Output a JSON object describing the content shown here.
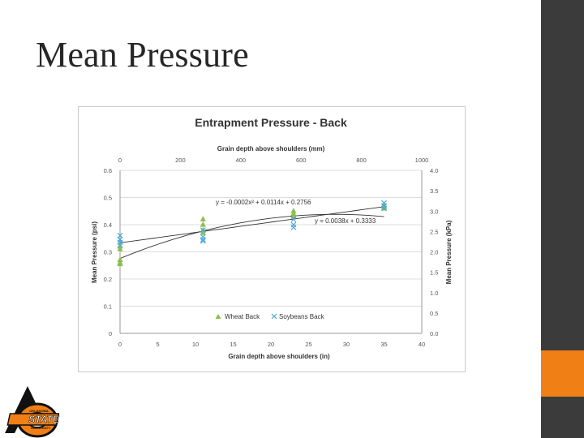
{
  "slide": {
    "title": "Mean Pressure"
  },
  "logo": {
    "text_top": "OKLAHOMA",
    "text_main": "STATE",
    "text_bottom": "UNIVERSITY"
  },
  "chart_data": {
    "type": "scatter",
    "title": "Entrapment Pressure - Back",
    "xlabel": "Grain depth above shoulders (in)",
    "ylabel": "Mean Pressure (psi)",
    "x2label": "Grain depth above shoulders (mm)",
    "y2label": "Mean Pressure (kPa)",
    "xlim": [
      0,
      40
    ],
    "ylim": [
      0,
      0.6
    ],
    "x2lim": [
      0,
      1000
    ],
    "y2lim": [
      0,
      4.0
    ],
    "x_ticks": [
      0,
      5,
      10,
      15,
      20,
      25,
      30,
      35,
      40
    ],
    "y_ticks": [
      0,
      0.1,
      0.2,
      0.3,
      0.4,
      0.5,
      0.6
    ],
    "x2_ticks": [
      0,
      200,
      400,
      600,
      800,
      1000
    ],
    "y2_ticks": [
      0.0,
      0.5,
      1.0,
      1.5,
      2.0,
      2.5,
      3.0,
      3.5,
      4.0
    ],
    "legend_position": "bottom-center",
    "series": [
      {
        "name": "Wheat Back",
        "marker": "triangle",
        "color": "#8bbf4c",
        "points": [
          [
            0,
            0.26
          ],
          [
            0,
            0.27
          ],
          [
            0,
            0.255
          ],
          [
            0,
            0.31
          ],
          [
            0,
            0.32
          ],
          [
            11,
            0.42
          ],
          [
            11,
            0.4
          ],
          [
            11,
            0.38
          ],
          [
            11,
            0.37
          ],
          [
            23,
            0.45
          ],
          [
            23,
            0.44
          ],
          [
            23,
            0.43
          ],
          [
            35,
            0.465
          ],
          [
            35,
            0.46
          ],
          [
            35,
            0.47
          ]
        ]
      },
      {
        "name": "Soybeans Back",
        "marker": "x",
        "color": "#4aa8d8",
        "points": [
          [
            0,
            0.36
          ],
          [
            0,
            0.345
          ],
          [
            0,
            0.335
          ],
          [
            0,
            0.325
          ],
          [
            11,
            0.38
          ],
          [
            11,
            0.355
          ],
          [
            11,
            0.345
          ],
          [
            11,
            0.34
          ],
          [
            23,
            0.42
          ],
          [
            23,
            0.4
          ],
          [
            23,
            0.39
          ],
          [
            35,
            0.48
          ],
          [
            35,
            0.47
          ],
          [
            35,
            0.46
          ]
        ]
      }
    ],
    "trendlines": [
      {
        "type": "polynomial",
        "coefficients": [
          0.2756,
          0.0114,
          -0.0002
        ],
        "label": "y = -0.0002x² + 0.0114x + 0.2756"
      },
      {
        "type": "linear",
        "coefficients": [
          0.3333,
          0.0038
        ],
        "label": "y = 0.0038x + 0.3333"
      }
    ],
    "grid": {
      "horizontal": true,
      "vertical": false
    }
  }
}
